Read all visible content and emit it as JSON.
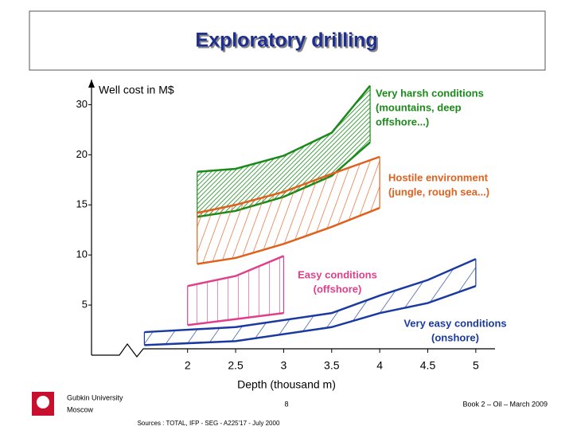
{
  "chart_data": {
    "type": "range_area",
    "title": "Exploratory drilling",
    "ylabel": "Well cost in M$",
    "xlabel": "Depth (thousand m)",
    "xlim": [
      1,
      5.2
    ],
    "xticks": [
      2,
      2.5,
      3,
      3.5,
      4,
      4.5,
      5
    ],
    "ylim": [
      0,
      35
    ],
    "yticks": [
      5,
      10,
      15,
      20,
      30
    ],
    "series": [
      {
        "name": [
          "Very harsh conditions",
          "(mountains, deep",
          "offshore...)"
        ],
        "color": "#1a8a1a",
        "x": [
          2.1,
          2.5,
          3.0,
          3.5,
          3.9
        ],
        "upper": [
          18.3,
          18.6,
          19.9,
          24.4,
          33.8
        ],
        "lower": [
          13.8,
          14.4,
          15.8,
          17.9,
          22.5
        ]
      },
      {
        "name": [
          "Hostile environment",
          "(jungle, rough sea...)"
        ],
        "color": "#e0601e",
        "x": [
          2.1,
          2.5,
          3.0,
          3.5,
          4.0
        ],
        "upper": [
          14.2,
          15.0,
          16.3,
          18.1,
          19.8
        ],
        "lower": [
          9.1,
          9.7,
          11.1,
          12.8,
          14.7
        ]
      },
      {
        "name": [
          "Easy conditions",
          "(offshore)"
        ],
        "color": "#e0408a",
        "x": [
          2.0,
          2.5,
          3.0
        ],
        "upper": [
          6.9,
          7.9,
          9.9
        ],
        "lower": [
          3.0,
          3.6,
          4.2
        ]
      },
      {
        "name": [
          "Very easy conditions",
          "(onshore)"
        ],
        "color": "#1a3aa0",
        "x": [
          1.55,
          2.5,
          3.5,
          4.0,
          4.5,
          5.0
        ],
        "upper": [
          2.3,
          2.8,
          4.2,
          5.95,
          7.5,
          9.6
        ],
        "lower": [
          1.0,
          1.4,
          2.8,
          4.2,
          5.2,
          6.9
        ]
      }
    ]
  },
  "footer": {
    "institution": "Gubkin University",
    "city": "Moscow",
    "page": "8",
    "book": "Book 2 – Oil – March 2009",
    "sources": "Sources : TOTAL, IFP - SEG - A225'17 - July 2000"
  }
}
